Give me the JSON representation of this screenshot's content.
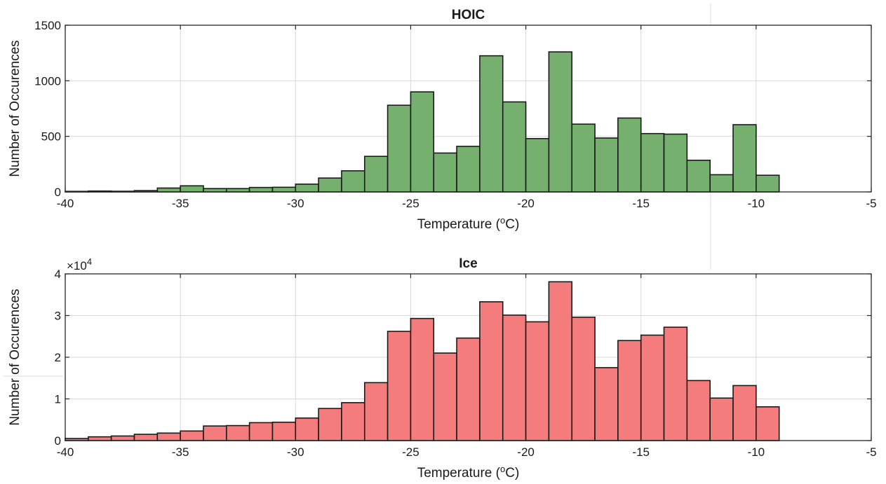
{
  "chart_data": [
    {
      "type": "bar",
      "title": "HOIC",
      "xlabel": "Temperature (°C)",
      "ylabel": "Number of Occurences",
      "xlim": [
        -40,
        -5
      ],
      "ylim": [
        0,
        1500
      ],
      "xticks": [
        -40,
        -35,
        -30,
        -25,
        -20,
        -15,
        -10,
        -5
      ],
      "yticks": [
        0,
        500,
        1000,
        1500
      ],
      "multiplier": "",
      "grid": true,
      "color": "#76b06f",
      "bin_width": 1,
      "bin_edges_start": [
        -40,
        -39,
        -38,
        -37,
        -36,
        -35,
        -34,
        -33,
        -32,
        -31,
        -30,
        -29,
        -28,
        -27,
        -26,
        -25,
        -24,
        -23,
        -22,
        -21,
        -20,
        -19,
        -18,
        -17,
        -16,
        -15,
        -14,
        -13,
        -12,
        -11,
        -10
      ],
      "values": [
        5,
        8,
        6,
        12,
        35,
        55,
        30,
        30,
        40,
        42,
        70,
        125,
        190,
        320,
        780,
        900,
        350,
        410,
        1225,
        810,
        480,
        1260,
        610,
        485,
        665,
        525,
        520,
        285,
        155,
        605,
        150
      ]
    },
    {
      "type": "bar",
      "title": "Ice",
      "xlabel": "Temperature (°C)",
      "ylabel": "Number of Occurences",
      "xlim": [
        -40,
        -5
      ],
      "ylim": [
        0,
        4
      ],
      "xticks": [
        -40,
        -35,
        -30,
        -25,
        -20,
        -15,
        -10,
        -5
      ],
      "yticks": [
        0,
        1,
        2,
        3,
        4
      ],
      "multiplier": "×10^4",
      "grid": true,
      "color": "#f57c7c",
      "bin_width": 1,
      "bin_edges_start": [
        -40,
        -39,
        -38,
        -37,
        -36,
        -35,
        -34,
        -33,
        -32,
        -31,
        -30,
        -29,
        -28,
        -27,
        -26,
        -25,
        -24,
        -23,
        -22,
        -21,
        -20,
        -19,
        -18,
        -17,
        -16,
        -15,
        -14,
        -13,
        -12,
        -11,
        -10
      ],
      "values": [
        0.05,
        0.09,
        0.11,
        0.15,
        0.18,
        0.23,
        0.35,
        0.36,
        0.43,
        0.44,
        0.54,
        0.77,
        0.91,
        1.39,
        2.62,
        2.93,
        2.1,
        2.46,
        3.33,
        3.01,
        2.85,
        3.81,
        2.96,
        1.75,
        2.4,
        2.53,
        2.72,
        1.44,
        1.02,
        1.32,
        0.81
      ]
    }
  ]
}
